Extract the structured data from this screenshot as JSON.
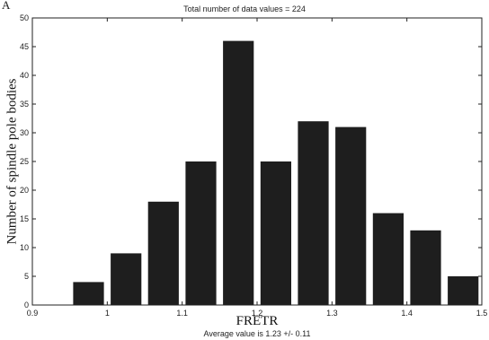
{
  "chart_data": {
    "type": "bar",
    "panel_letter": "A",
    "title": "Total number of data values = 224",
    "xlabel": "FRETR",
    "ylabel": "Number of spindle pole bodies",
    "footnote": "Average value is  1.23 +/- 0.11",
    "xlim": [
      0.9,
      1.5
    ],
    "ylim": [
      0,
      50
    ],
    "xticks": [
      0.9,
      1,
      1.1,
      1.2,
      1.3,
      1.4,
      1.5
    ],
    "yticks": [
      0,
      5,
      10,
      15,
      20,
      25,
      30,
      35,
      40,
      45,
      50
    ],
    "bin_width": 0.05,
    "bars": [
      {
        "x": 0.975,
        "value": 4
      },
      {
        "x": 1.025,
        "value": 9
      },
      {
        "x": 1.075,
        "value": 18
      },
      {
        "x": 1.125,
        "value": 25
      },
      {
        "x": 1.175,
        "value": 46
      },
      {
        "x": 1.225,
        "value": 25
      },
      {
        "x": 1.275,
        "value": 32
      },
      {
        "x": 1.325,
        "value": 31
      },
      {
        "x": 1.375,
        "value": 16
      },
      {
        "x": 1.425,
        "value": 13
      },
      {
        "x": 1.475,
        "value": 5
      }
    ],
    "grid": false,
    "bar_color": "#1e1e1e"
  }
}
